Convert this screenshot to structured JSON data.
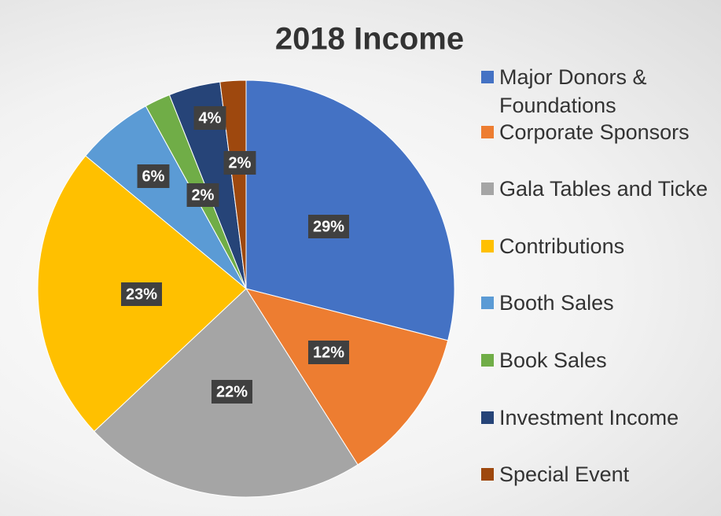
{
  "chart_data": {
    "type": "pie",
    "title": "2018 Income",
    "categories": [
      "Major Donors & Foundations",
      "Corporate Sponsors",
      "Gala Tables and Ticke",
      "Contributions",
      "Booth Sales",
      "Book Sales",
      "Investment Income",
      "Special Event"
    ],
    "values": [
      29,
      12,
      22,
      23,
      6,
      2,
      4,
      2
    ],
    "value_labels": [
      "29%",
      "12%",
      "22%",
      "23%",
      "6%",
      "2%",
      "4%",
      "2%"
    ],
    "colors": [
      "#4472c4",
      "#ed7d31",
      "#a5a5a5",
      "#ffc000",
      "#5b9bd5",
      "#70ad47",
      "#264478",
      "#9e480e"
    ],
    "legend": "right"
  }
}
